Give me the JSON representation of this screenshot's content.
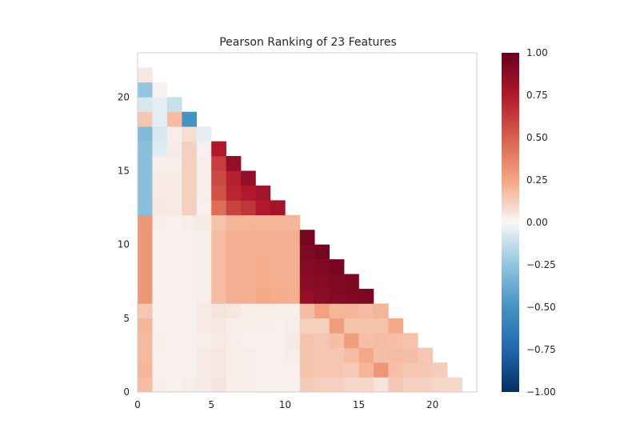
{
  "chart_data": {
    "type": "heatmap",
    "title": "Pearson Ranking of 23 Features",
    "xlabel": "",
    "ylabel": "",
    "n_features": 23,
    "xlim": [
      0,
      23
    ],
    "ylim": [
      0,
      23
    ],
    "x_ticks": [
      0,
      5,
      10,
      15,
      20
    ],
    "y_ticks": [
      0,
      5,
      10,
      15,
      20
    ],
    "grid": false,
    "triangle": "lower",
    "colormap": "RdBu_r",
    "color_min": -1.0,
    "color_max": 1.0,
    "colorbar_ticks": [
      "1.00",
      "0.75",
      "0.50",
      "0.25",
      "0.00",
      "−0.25",
      "−0.50",
      "−0.75",
      "−1.00"
    ],
    "colorbar_tick_values": [
      1.0,
      0.75,
      0.5,
      0.25,
      0.0,
      -0.25,
      -0.5,
      -0.75,
      -1.0
    ],
    "rows": [
      [
        0.18,
        0.03,
        0.02,
        0.03,
        0.04,
        0.06,
        0.03,
        0.03,
        0.02,
        0.02,
        0.02,
        0.13,
        0.12,
        0.12,
        0.1,
        0.1,
        0.06,
        0.15,
        0.12,
        0.12,
        0.1,
        0.1
      ],
      [
        0.2,
        0.02,
        0.02,
        0.02,
        0.04,
        0.05,
        0.03,
        0.03,
        0.02,
        0.02,
        0.02,
        0.16,
        0.15,
        0.15,
        0.14,
        0.2,
        0.3,
        0.17,
        0.15,
        0.15,
        0.13
      ],
      [
        0.19,
        0.02,
        0.02,
        0.02,
        0.04,
        0.05,
        0.03,
        0.03,
        0.02,
        0.02,
        0.03,
        0.16,
        0.15,
        0.15,
        0.18,
        0.24,
        0.17,
        0.18,
        0.17,
        0.15
      ],
      [
        0.19,
        0.03,
        0.02,
        0.02,
        0.03,
        0.04,
        0.03,
        0.02,
        0.02,
        0.02,
        0.04,
        0.16,
        0.15,
        0.17,
        0.28,
        0.17,
        0.18,
        0.17,
        0.16
      ],
      [
        0.2,
        0.02,
        0.02,
        0.02,
        0.04,
        0.05,
        0.03,
        0.03,
        0.03,
        0.02,
        0.03,
        0.12,
        0.12,
        0.28,
        0.16,
        0.16,
        0.16,
        0.24
      ],
      [
        0.15,
        0.02,
        0.02,
        0.02,
        0.04,
        0.06,
        0.05,
        0.03,
        0.03,
        0.03,
        0.03,
        0.18,
        0.26,
        0.2,
        0.2,
        0.18,
        0.2
      ],
      [
        0.3,
        0.02,
        0.02,
        0.02,
        0.03,
        0.18,
        0.22,
        0.22,
        0.24,
        0.23,
        0.22,
        0.85,
        0.88,
        0.9,
        0.92,
        0.93
      ],
      [
        0.3,
        0.02,
        0.02,
        0.02,
        0.03,
        0.18,
        0.22,
        0.22,
        0.23,
        0.22,
        0.22,
        0.88,
        0.9,
        0.92,
        0.93
      ],
      [
        0.3,
        0.02,
        0.02,
        0.02,
        0.03,
        0.18,
        0.22,
        0.22,
        0.23,
        0.22,
        0.22,
        0.9,
        0.92,
        0.95
      ],
      [
        0.3,
        0.02,
        0.02,
        0.02,
        0.03,
        0.18,
        0.22,
        0.22,
        0.22,
        0.22,
        0.22,
        0.92,
        0.95
      ],
      [
        0.3,
        0.02,
        0.02,
        0.02,
        0.03,
        0.18,
        0.22,
        0.22,
        0.22,
        0.22,
        0.22,
        0.95
      ],
      [
        0.3,
        0.03,
        0.02,
        0.03,
        0.04,
        0.16,
        0.2,
        0.2,
        0.2,
        0.2,
        0.2
      ],
      [
        -0.28,
        0.05,
        0.04,
        0.12,
        0.02,
        0.45,
        0.6,
        0.65,
        0.75,
        0.8
      ],
      [
        -0.28,
        0.04,
        0.04,
        0.12,
        0.03,
        0.55,
        0.7,
        0.75,
        0.8
      ],
      [
        -0.28,
        0.04,
        0.04,
        0.12,
        0.03,
        0.58,
        0.72,
        0.85
      ],
      [
        -0.28,
        0.03,
        0.03,
        0.12,
        0.03,
        0.62,
        0.85
      ],
      [
        -0.28,
        -0.06,
        0.04,
        0.12,
        0.02,
        0.75
      ],
      [
        -0.3,
        -0.08,
        0.03,
        0.08,
        -0.05
      ],
      [
        0.15,
        -0.05,
        0.18,
        -0.5
      ],
      [
        -0.08,
        -0.05,
        -0.12
      ],
      [
        -0.25,
        0.02
      ],
      [
        0.05
      ]
    ]
  },
  "colors": {
    "axes_edge": "#cccccc",
    "text": "#262626",
    "background": "#ffffff"
  }
}
